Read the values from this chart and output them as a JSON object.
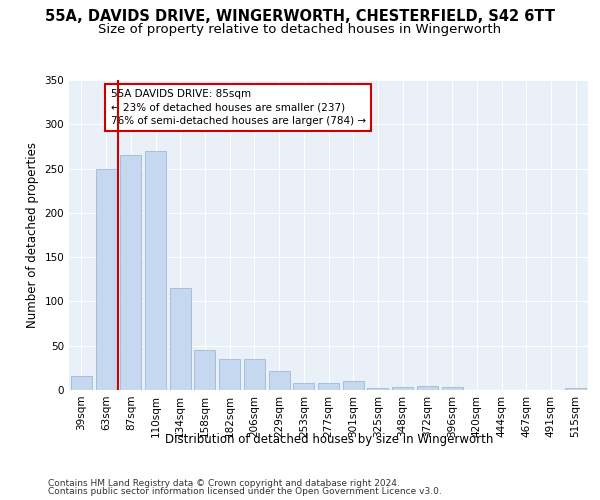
{
  "title_line1": "55A, DAVIDS DRIVE, WINGERWORTH, CHESTERFIELD, S42 6TT",
  "title_line2": "Size of property relative to detached houses in Wingerworth",
  "xlabel": "Distribution of detached houses by size in Wingerworth",
  "ylabel": "Number of detached properties",
  "categories": [
    "39sqm",
    "63sqm",
    "87sqm",
    "110sqm",
    "134sqm",
    "158sqm",
    "182sqm",
    "206sqm",
    "229sqm",
    "253sqm",
    "277sqm",
    "301sqm",
    "325sqm",
    "348sqm",
    "372sqm",
    "396sqm",
    "420sqm",
    "444sqm",
    "467sqm",
    "491sqm",
    "515sqm"
  ],
  "values": [
    16,
    250,
    265,
    270,
    115,
    45,
    35,
    35,
    22,
    8,
    8,
    10,
    2,
    3,
    5,
    3,
    0,
    0,
    0,
    0,
    2
  ],
  "bar_color": "#c5d8f0",
  "bar_edge_color": "#a0b8d8",
  "vline_color": "#cc0000",
  "vline_x": 1.5,
  "annotation_text_line1": "55A DAVIDS DRIVE: 85sqm",
  "annotation_text_line2": "← 23% of detached houses are smaller (237)",
  "annotation_text_line3": "76% of semi-detached houses are larger (784) →",
  "annotation_box_color": "#ffffff",
  "annotation_box_edge_color": "#cc0000",
  "ylim": [
    0,
    350
  ],
  "yticks": [
    0,
    50,
    100,
    150,
    200,
    250,
    300,
    350
  ],
  "plot_bg_color": "#eaf0f8",
  "footer_line1": "Contains HM Land Registry data © Crown copyright and database right 2024.",
  "footer_line2": "Contains public sector information licensed under the Open Government Licence v3.0.",
  "title_fontsize": 10.5,
  "subtitle_fontsize": 9.5,
  "axis_label_fontsize": 8.5,
  "tick_fontsize": 7.5,
  "annotation_fontsize": 7.5,
  "footer_fontsize": 6.5
}
